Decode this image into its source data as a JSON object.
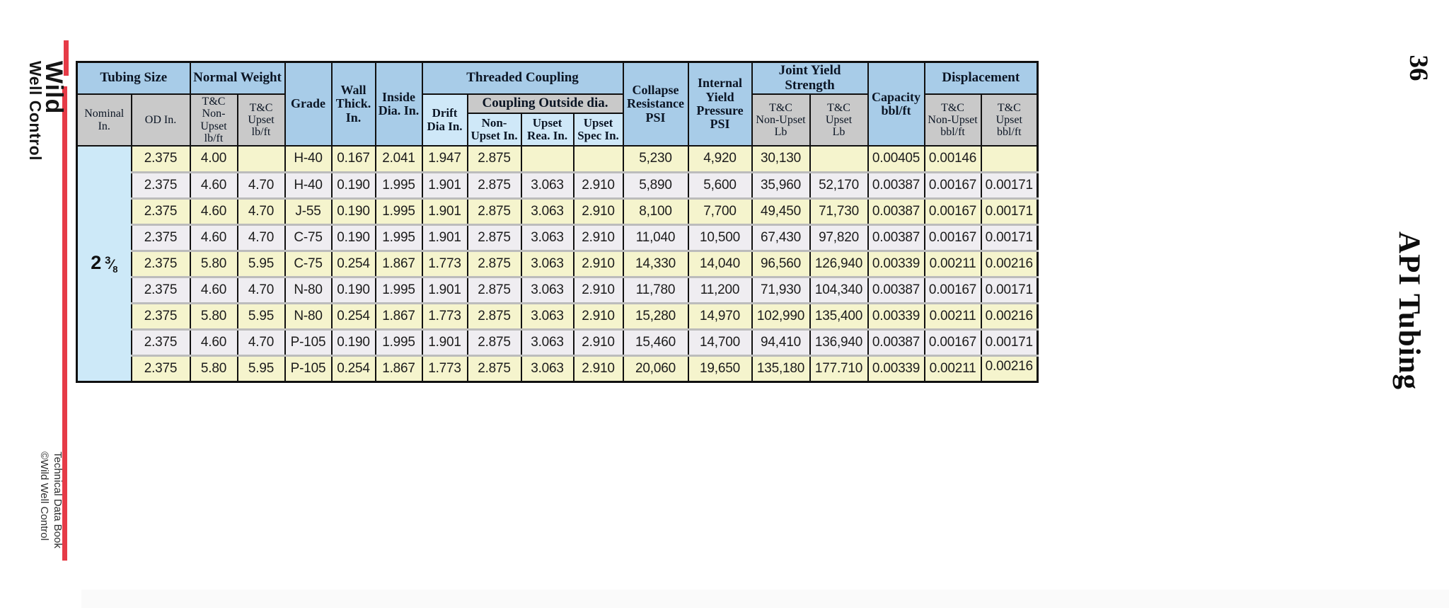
{
  "page": {
    "page_number": "36",
    "side_title": "API Tubing",
    "logo_line1": "Wild",
    "logo_line2": "Well Control",
    "footer_text": "Technical Data Book\n©Wild Well Control"
  },
  "colors": {
    "header_blue": "#a8cce8",
    "header_gray": "#c9c9c9",
    "header_light_blue": "#cfe8f8",
    "row_yellow": "#f5f4cd",
    "row_gray": "#efedf1",
    "nominal_blue": "#cde9f8",
    "accent_red": "#e63b47",
    "border_black": "#101010"
  },
  "table": {
    "groups": {
      "tubing_size": "Tubing Size",
      "normal_weight": "Normal Weight",
      "threaded_coupling": "Threaded Coupling",
      "coupling_outside_dia": "Coupling Outside dia.",
      "joint_yield_strength": "Joint Yield Strength",
      "displacement": "Displacement"
    },
    "headers": {
      "nominal": "Nominal\nIn.",
      "od": "OD In.",
      "wt_non_upset": "T&C\nNon-\nUpset\nlb/ft",
      "wt_upset": "T&C\nUpset\nlb/ft",
      "grade": "Grade",
      "wall_thick": "Wall\nThick.\nIn.",
      "inside_dia": "Inside\nDia. In.",
      "drift_dia": "Drift\nDia In.",
      "cpl_non_upset": "Non-\nUpset In.",
      "cpl_upset_rea": "Upset\nRea. In.",
      "cpl_upset_spec": "Upset\nSpec In.",
      "collapse": "Collapse\nResistance\nPSI",
      "internal_yield": "Internal\nYield\nPressure\nPSI",
      "jys_non_upset": "T&C\nNon-Upset\nLb",
      "jys_upset": "T&C\nUpset\nLb",
      "capacity": "Capacity\nbbl/ft",
      "disp_non_upset": "T&C\nNon-Upset\nbbl/ft",
      "disp_upset": "T&C\nUpset\nbbl/ft"
    },
    "nominal_size": {
      "whole": "2",
      "numerator": "3",
      "denominator": "8"
    },
    "rows": [
      [
        "2.375",
        "4.00",
        "",
        "H-40",
        "0.167",
        "2.041",
        "1.947",
        "2.875",
        "",
        "",
        "5,230",
        "4,920",
        "30,130",
        "",
        "0.00405",
        "0.00146",
        ""
      ],
      [
        "2.375",
        "4.60",
        "4.70",
        "H-40",
        "0.190",
        "1.995",
        "1.901",
        "2.875",
        "3.063",
        "2.910",
        "5,890",
        "5,600",
        "35,960",
        "52,170",
        "0.00387",
        "0.00167",
        "0.00171"
      ],
      [
        "2.375",
        "4.60",
        "4.70",
        "J-55",
        "0.190",
        "1.995",
        "1.901",
        "2.875",
        "3.063",
        "2.910",
        "8,100",
        "7,700",
        "49,450",
        "71,730",
        "0.00387",
        "0.00167",
        "0.00171"
      ],
      [
        "2.375",
        "4.60",
        "4.70",
        "C-75",
        "0.190",
        "1.995",
        "1.901",
        "2.875",
        "3.063",
        "2.910",
        "11,040",
        "10,500",
        "67,430",
        "97,820",
        "0.00387",
        "0.00167",
        "0.00171"
      ],
      [
        "2.375",
        "5.80",
        "5.95",
        "C-75",
        "0.254",
        "1.867",
        "1.773",
        "2.875",
        "3.063",
        "2.910",
        "14,330",
        "14,040",
        "96,560",
        "126,940",
        "0.00339",
        "0.00211",
        "0.00216"
      ],
      [
        "2.375",
        "4.60",
        "4.70",
        "N-80",
        "0.190",
        "1.995",
        "1.901",
        "2.875",
        "3.063",
        "2.910",
        "11,780",
        "11,200",
        "71,930",
        "104,340",
        "0.00387",
        "0.00167",
        "0.00171"
      ],
      [
        "2.375",
        "5.80",
        "5.95",
        "N-80",
        "0.254",
        "1.867",
        "1.773",
        "2.875",
        "3.063",
        "2.910",
        "15,280",
        "14,970",
        "102,990",
        "135,400",
        "0.00339",
        "0.00211",
        "0.00216"
      ],
      [
        "2.375",
        "4.60",
        "4.70",
        "P-105",
        "0.190",
        "1.995",
        "1.901",
        "2.875",
        "3.063",
        "2.910",
        "15,460",
        "14,700",
        "94,410",
        "136,940",
        "0.00387",
        "0.00167",
        "0.00171"
      ],
      [
        "2.375",
        "5.80",
        "5.95",
        "P-105",
        "0.254",
        "1.867",
        "1.773",
        "2.875",
        "3.063",
        "2.910",
        "20,060",
        "19,650",
        "135,180",
        "177.710",
        "0.00339",
        "0.00211",
        "0.00216"
      ]
    ]
  }
}
